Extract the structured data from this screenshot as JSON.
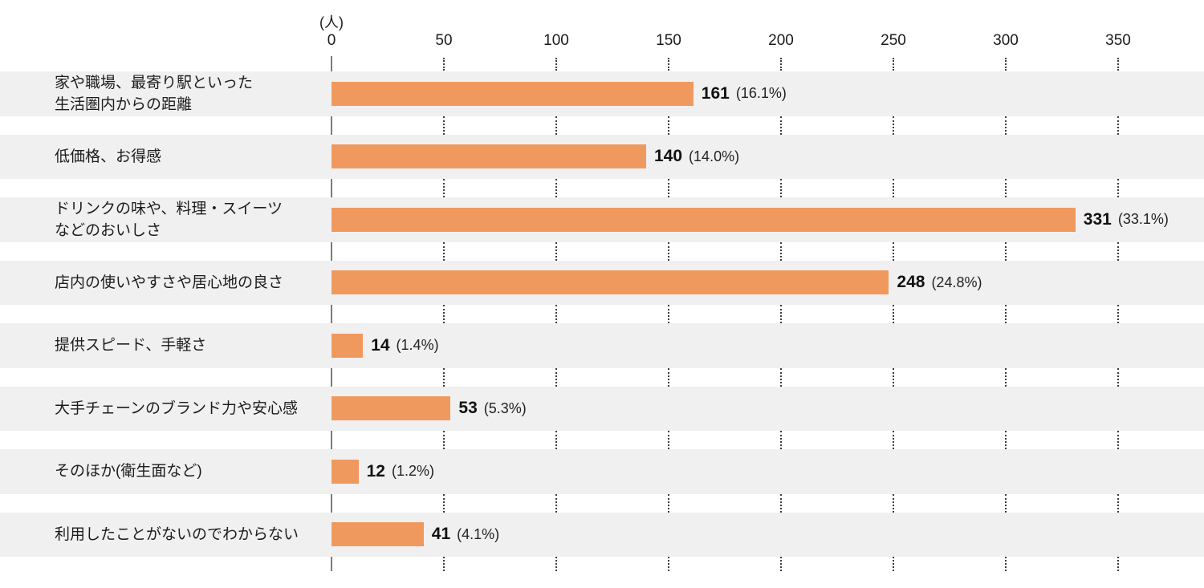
{
  "chart_data": {
    "type": "bar",
    "orientation": "horizontal",
    "title": "",
    "unit_label": "(人)",
    "xlabel": "",
    "ylabel": "",
    "xticks": [
      0,
      50,
      100,
      150,
      200,
      250,
      300,
      350
    ],
    "xlim": [
      0,
      374
    ],
    "grid": "dotted-vertical-between-rows",
    "legend": "none",
    "bar_color": "#F0995F",
    "stripe_color": "#F0F0F0",
    "categories": [
      "家や職場、最寄り駅といった\n生活圏内からの距離",
      "低価格、お得感",
      "ドリンクの味や、料理・スイーツ\nなどのおいしさ",
      "店内の使いやすさや居心地の良さ",
      "提供スピード、手軽さ",
      "大手チェーンのブランド力や安心感",
      "そのほか(衛生面など)",
      "利用したことがないのでわからない"
    ],
    "values": [
      161,
      140,
      331,
      248,
      14,
      53,
      12,
      41
    ],
    "percent_labels": [
      "16.1%",
      "14.0%",
      "33.1%",
      "24.8%",
      "1.4%",
      "5.3%",
      "1.2%",
      "4.1%"
    ]
  }
}
